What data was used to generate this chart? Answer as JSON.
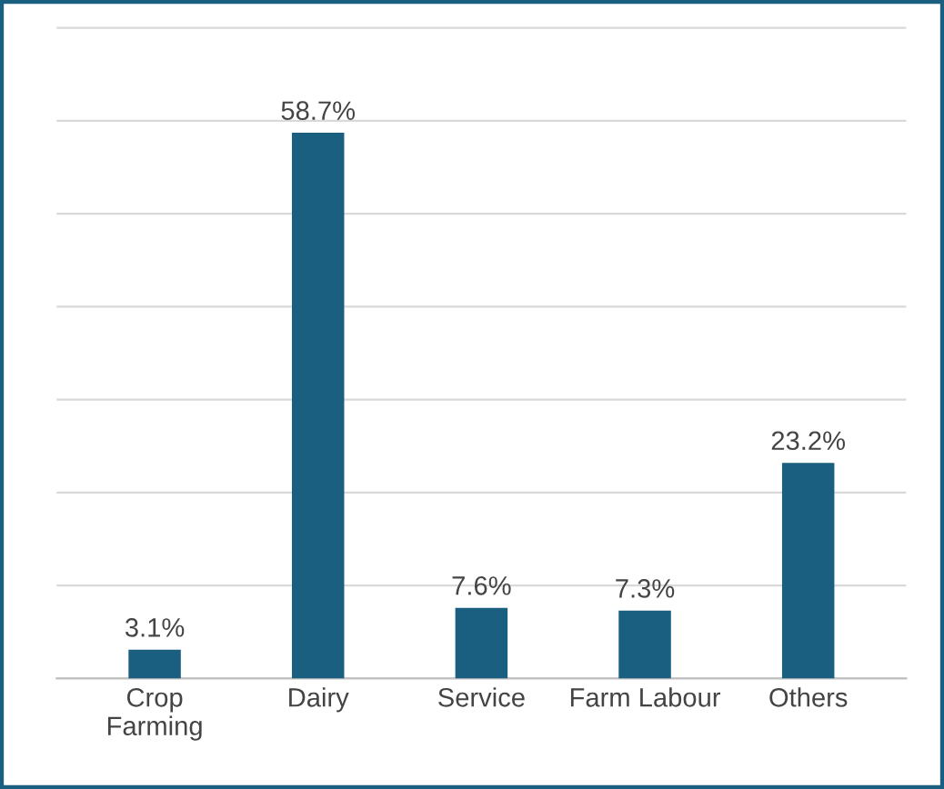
{
  "chart_data": {
    "type": "bar",
    "categories": [
      "Crop\nFarming",
      "Dairy",
      "Service",
      "Farm Labour",
      "Others"
    ],
    "values": [
      3.1,
      58.7,
      7.6,
      7.3,
      23.2
    ],
    "value_labels": [
      "3.1%",
      "58.7%",
      "7.6%",
      "7.3%",
      "23.2%"
    ],
    "color": "#1a5e80",
    "grid": "y",
    "tick_labels": "x"
  }
}
